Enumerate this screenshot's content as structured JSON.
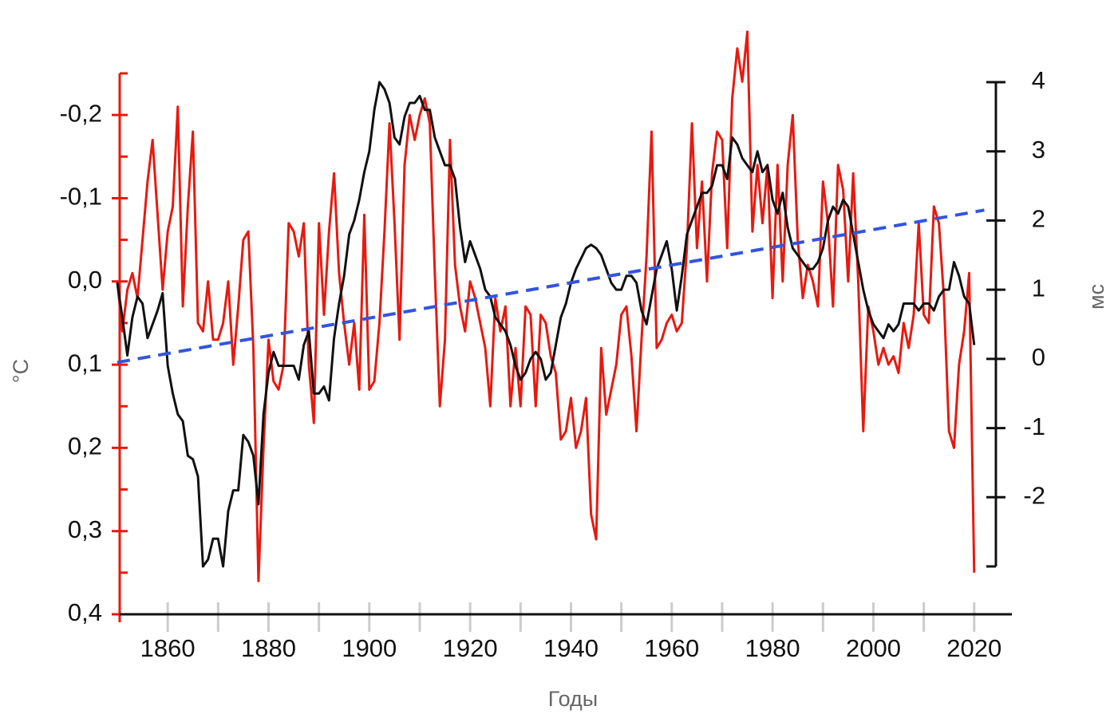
{
  "chart_data": {
    "type": "line",
    "xlabel": "Годы",
    "ylabel": "°C",
    "y2label": "мс",
    "x": [
      1850,
      1851,
      1852,
      1853,
      1854,
      1855,
      1856,
      1857,
      1858,
      1859,
      1860,
      1861,
      1862,
      1863,
      1864,
      1865,
      1866,
      1867,
      1868,
      1869,
      1870,
      1871,
      1872,
      1873,
      1874,
      1875,
      1876,
      1877,
      1878,
      1879,
      1880,
      1881,
      1882,
      1883,
      1884,
      1885,
      1886,
      1887,
      1888,
      1889,
      1890,
      1891,
      1892,
      1893,
      1894,
      1895,
      1896,
      1897,
      1898,
      1899,
      1900,
      1901,
      1902,
      1903,
      1904,
      1905,
      1906,
      1907,
      1908,
      1909,
      1910,
      1911,
      1912,
      1913,
      1914,
      1915,
      1916,
      1917,
      1918,
      1919,
      1920,
      1921,
      1922,
      1923,
      1924,
      1925,
      1926,
      1927,
      1928,
      1929,
      1930,
      1931,
      1932,
      1933,
      1934,
      1935,
      1936,
      1937,
      1938,
      1939,
      1940,
      1941,
      1942,
      1943,
      1944,
      1945,
      1946,
      1947,
      1948,
      1949,
      1950,
      1951,
      1952,
      1953,
      1954,
      1955,
      1956,
      1957,
      1958,
      1959,
      1960,
      1961,
      1962,
      1963,
      1964,
      1965,
      1966,
      1967,
      1968,
      1969,
      1970,
      1971,
      1972,
      1973,
      1974,
      1975,
      1976,
      1977,
      1978,
      1979,
      1980,
      1981,
      1982,
      1983,
      1984,
      1985,
      1986,
      1987,
      1988,
      1989,
      1990,
      1991,
      1992,
      1993,
      1994,
      1995,
      1996,
      1997,
      1998,
      1999,
      2000,
      2001,
      2002,
      2003,
      2004,
      2005,
      2006,
      2007,
      2008,
      2009,
      2010,
      2011,
      2012,
      2013,
      2014,
      2015,
      2016,
      2017,
      2018,
      2019,
      2020
    ],
    "series": [
      {
        "color": "#e8190f",
        "axis": "y",
        "values": [
          0.0,
          0.06,
          0.01,
          -0.01,
          0.02,
          -0.05,
          -0.12,
          -0.17,
          -0.08,
          0.01,
          -0.06,
          -0.09,
          -0.21,
          0.03,
          -0.09,
          -0.18,
          0.05,
          0.06,
          0.0,
          0.07,
          0.07,
          0.05,
          0.0,
          0.1,
          0.03,
          -0.05,
          -0.06,
          0.08,
          0.36,
          0.2,
          0.07,
          0.12,
          0.13,
          0.1,
          -0.07,
          -0.06,
          -0.03,
          -0.07,
          0.1,
          0.17,
          -0.07,
          0.04,
          -0.06,
          -0.13,
          -0.01,
          0.05,
          0.1,
          0.05,
          0.13,
          -0.08,
          0.13,
          0.12,
          0.05,
          -0.06,
          -0.19,
          -0.07,
          0.07,
          -0.14,
          -0.2,
          -0.17,
          -0.2,
          -0.22,
          -0.19,
          -0.01,
          0.15,
          0.07,
          -0.17,
          -0.02,
          0.03,
          0.06,
          0.0,
          0.02,
          0.05,
          0.08,
          0.15,
          0.02,
          0.06,
          0.03,
          0.15,
          0.08,
          0.15,
          0.03,
          0.04,
          0.15,
          0.04,
          0.05,
          0.09,
          0.11,
          0.19,
          0.18,
          0.14,
          0.2,
          0.18,
          0.14,
          0.28,
          0.31,
          0.08,
          0.16,
          0.13,
          0.1,
          0.04,
          0.03,
          0.09,
          0.18,
          0.07,
          -0.03,
          -0.18,
          0.08,
          0.07,
          0.05,
          0.04,
          0.06,
          0.05,
          -0.04,
          -0.19,
          -0.04,
          -0.12,
          0.0,
          -0.13,
          -0.18,
          -0.17,
          -0.04,
          -0.22,
          -0.28,
          -0.24,
          -0.3,
          -0.06,
          -0.14,
          -0.07,
          -0.14,
          0.02,
          -0.14,
          0.0,
          -0.14,
          -0.2,
          -0.05,
          0.02,
          -0.02,
          0.0,
          0.03,
          -0.12,
          -0.07,
          0.03,
          -0.14,
          -0.11,
          0.0,
          -0.13,
          0.0,
          0.18,
          0.03,
          0.06,
          0.1,
          0.08,
          0.1,
          0.09,
          0.11,
          0.05,
          0.08,
          0.04,
          -0.07,
          0.04,
          0.05,
          -0.09,
          -0.07,
          0.02,
          0.18,
          0.2,
          0.1,
          0.06,
          -0.01,
          0.35
        ]
      },
      {
        "color": "#111111",
        "axis": "y2",
        "values": [
          1.1,
          0.6,
          0.05,
          0.6,
          0.9,
          0.8,
          0.3,
          0.5,
          0.7,
          0.95,
          -0.1,
          -0.5,
          -0.8,
          -0.9,
          -1.4,
          -1.45,
          -1.7,
          -3.0,
          -2.9,
          -2.6,
          -2.6,
          -3.0,
          -2.2,
          -1.9,
          -1.9,
          -1.1,
          -1.2,
          -1.4,
          -2.1,
          -0.8,
          -0.2,
          0.1,
          -0.1,
          -0.1,
          -0.1,
          -0.1,
          -0.3,
          0.2,
          0.4,
          -0.5,
          -0.5,
          -0.4,
          -0.6,
          0.3,
          0.8,
          1.2,
          1.8,
          2.0,
          2.3,
          2.7,
          3.0,
          3.6,
          4.0,
          3.9,
          3.7,
          3.2,
          3.1,
          3.5,
          3.7,
          3.7,
          3.8,
          3.6,
          3.6,
          3.2,
          3.0,
          2.8,
          2.8,
          2.6,
          1.9,
          1.4,
          1.7,
          1.5,
          1.3,
          1.0,
          0.9,
          0.6,
          0.5,
          0.4,
          0.2,
          -0.1,
          -0.3,
          -0.2,
          0.0,
          0.1,
          0.0,
          -0.3,
          -0.2,
          0.2,
          0.6,
          0.8,
          1.1,
          1.3,
          1.45,
          1.6,
          1.65,
          1.6,
          1.5,
          1.3,
          1.1,
          1.0,
          1.0,
          1.2,
          1.2,
          1.1,
          0.7,
          0.5,
          0.9,
          1.3,
          1.5,
          1.7,
          1.3,
          0.7,
          1.2,
          1.8,
          2.0,
          2.2,
          2.4,
          2.4,
          2.5,
          2.8,
          2.8,
          2.6,
          3.2,
          3.1,
          2.9,
          2.8,
          2.7,
          3.0,
          2.7,
          2.8,
          2.3,
          2.1,
          2.4,
          1.9,
          1.6,
          1.5,
          1.4,
          1.3,
          1.3,
          1.4,
          1.6,
          2.0,
          2.2,
          2.1,
          2.3,
          2.2,
          1.8,
          1.4,
          1.0,
          0.7,
          0.5,
          0.4,
          0.3,
          0.5,
          0.4,
          0.5,
          0.8,
          0.8,
          0.8,
          0.7,
          0.8,
          0.8,
          0.7,
          0.9,
          1.0,
          1.0,
          1.4,
          1.2,
          0.9,
          0.8,
          0.2
        ]
      }
    ],
    "trend": {
      "x": [
        1850,
        2022
      ],
      "values": [
        -0.05,
        2.15
      ],
      "color": "#3355dd",
      "axis": "y2",
      "dashed": true
    },
    "xlim": [
      1850,
      2027
    ],
    "xticks": [
      1860,
      1880,
      1900,
      1920,
      1940,
      1960,
      1980,
      2000,
      2020
    ],
    "xminorticks": [
      1870,
      1890,
      1910,
      1930,
      1950,
      1970,
      1990,
      2010
    ],
    "ylim": [
      -0.25,
      0.4
    ],
    "y_inverted": true,
    "y_axis_color": "#e8190f",
    "yticks": [
      {
        "value": -0.2,
        "label": "-0,2"
      },
      {
        "value": -0.1,
        "label": "-0,1"
      },
      {
        "value": 0.0,
        "label": "0,0"
      },
      {
        "value": 0.1,
        "label": "0,1"
      },
      {
        "value": 0.2,
        "label": "0,2"
      },
      {
        "value": 0.3,
        "label": "0,3"
      },
      {
        "value": 0.4,
        "label": "0,4"
      }
    ],
    "yminorticks": [
      -0.25,
      -0.15,
      -0.05,
      0.05,
      0.15,
      0.25,
      0.35
    ],
    "y2lim": [
      -3,
      4
    ],
    "y2ticks": [
      4,
      3,
      2,
      1,
      0,
      -1,
      -2
    ]
  }
}
